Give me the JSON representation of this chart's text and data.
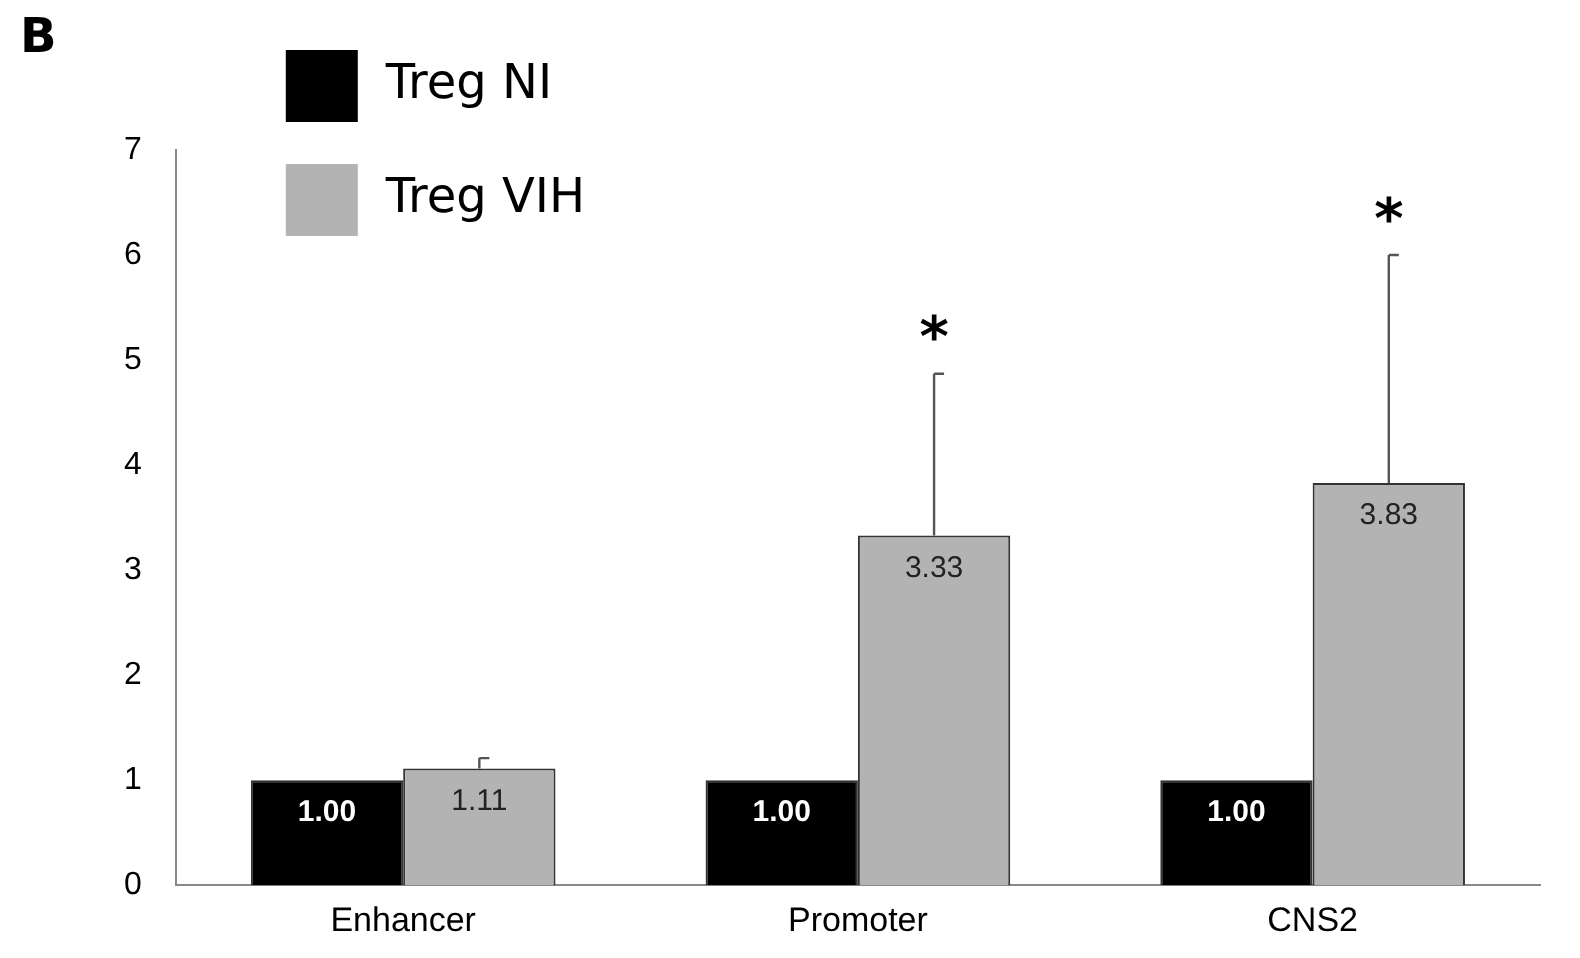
{
  "chart_data": {
    "type": "bar",
    "categories": [
      "Enhancer",
      "Promoter",
      "CNS2"
    ],
    "series": [
      {
        "name": "Treg NI",
        "color": "#000000",
        "values": [
          1.0,
          1.0,
          1.0
        ],
        "value_labels": [
          "1.00",
          "1.00",
          "1.00"
        ]
      },
      {
        "name": "Treg VIH",
        "color": "#b3b3b3",
        "values": [
          1.11,
          3.33,
          3.83
        ],
        "value_labels": [
          "1.11",
          "3.33",
          "3.83"
        ],
        "errors": [
          [
            1.11,
            1.21
          ],
          [
            3.33,
            4.87
          ],
          [
            3.83,
            6.0
          ]
        ]
      }
    ],
    "ylim": [
      0,
      7
    ],
    "yticks": [
      0,
      1,
      2,
      3,
      4,
      5,
      6,
      7
    ],
    "grid": false,
    "legend": "top left",
    "annotations": [
      "B",
      "*",
      "*"
    ]
  }
}
